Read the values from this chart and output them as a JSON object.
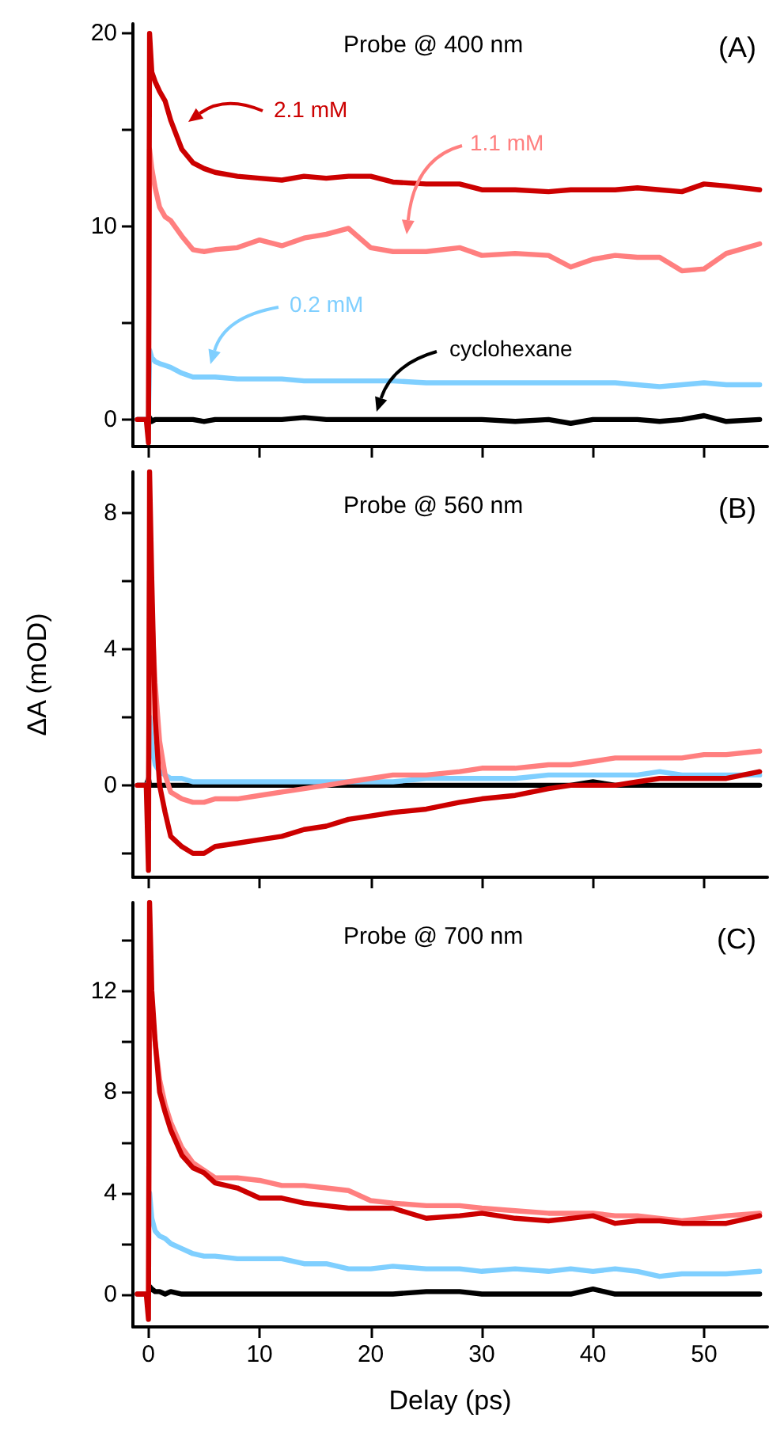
{
  "chart_data": [
    {
      "type": "line",
      "annotations": [
        "Probe @ 400 nm",
        "(A)"
      ],
      "xlim": [
        -1.4,
        55.7
      ],
      "xticks": [
        0,
        10,
        20,
        30,
        40,
        50
      ],
      "ylim": [
        -1.4,
        20.5
      ],
      "yticks": [
        0,
        {
          "value": 5,
          "label": null
        },
        10,
        {
          "value": 15,
          "label": null
        },
        20
      ],
      "tick_labels": "y",
      "x": [
        -1,
        -0.2,
        0,
        0.1,
        0.3,
        0.6,
        1,
        1.5,
        2,
        3,
        4,
        5,
        6,
        8,
        10,
        12,
        14,
        16,
        18,
        20,
        22,
        25,
        28,
        30,
        33,
        36,
        38,
        40,
        42,
        44,
        46,
        48,
        50,
        52,
        55
      ],
      "series": [
        {
          "name": "2.1 mM",
          "color": "#cc0000",
          "values": [
            0,
            0,
            -1.2,
            20,
            18,
            17.5,
            17,
            16.5,
            15.5,
            14,
            13.3,
            13,
            12.8,
            12.6,
            12.5,
            12.4,
            12.6,
            12.5,
            12.6,
            12.6,
            12.3,
            12.2,
            12.2,
            11.9,
            11.9,
            11.8,
            11.9,
            11.9,
            11.9,
            12.0,
            11.9,
            11.8,
            12.2,
            12.1,
            11.9
          ]
        },
        {
          "name": "1.1 mM",
          "color": "#ff7f7f",
          "values": [
            0,
            0,
            0,
            14,
            13,
            12,
            11,
            10.5,
            10.3,
            9.5,
            8.8,
            8.7,
            8.8,
            8.9,
            9.3,
            9.0,
            9.4,
            9.6,
            9.9,
            8.9,
            8.7,
            8.7,
            8.9,
            8.5,
            8.6,
            8.5,
            7.9,
            8.3,
            8.5,
            8.4,
            8.4,
            7.7,
            7.8,
            8.6,
            9.1
          ]
        },
        {
          "name": "0.2 mM",
          "color": "#7fcfff",
          "values": [
            0,
            0,
            0,
            3.6,
            3.2,
            3,
            2.9,
            2.8,
            2.7,
            2.4,
            2.2,
            2.2,
            2.2,
            2.1,
            2.1,
            2.1,
            2.0,
            2.0,
            2.0,
            2.0,
            2.0,
            1.9,
            1.9,
            1.9,
            1.9,
            1.9,
            1.9,
            1.9,
            1.9,
            1.8,
            1.7,
            1.8,
            1.9,
            1.8,
            1.8
          ]
        },
        {
          "name": "cyclohexane",
          "color": "#000000",
          "values": [
            0,
            0,
            0,
            0.1,
            -0.1,
            0,
            0,
            0,
            0,
            0,
            0,
            -0.1,
            0,
            0,
            0,
            0,
            0.1,
            0,
            0,
            0,
            0,
            0,
            0,
            0,
            -0.1,
            0,
            -0.2,
            0,
            0,
            0,
            -0.1,
            0,
            0.2,
            -0.1,
            0
          ]
        }
      ]
    },
    {
      "type": "line",
      "ylabel": "ΔA (mOD)",
      "annotations": [
        "Probe @ 560 nm",
        "(B)"
      ],
      "xlim": [
        -1.4,
        55.7
      ],
      "xticks": [
        0,
        10,
        20,
        30,
        40,
        50
      ],
      "ylim": [
        -2.7,
        9.2
      ],
      "yticks": [
        {
          "value": -2,
          "label": null
        },
        0,
        {
          "value": 2,
          "label": null
        },
        4,
        {
          "value": 6,
          "label": null
        },
        8
      ],
      "tick_labels": "y",
      "x": [
        -1,
        -0.2,
        0,
        0.1,
        0.3,
        0.6,
        1,
        1.5,
        2,
        3,
        4,
        5,
        6,
        8,
        10,
        12,
        14,
        16,
        18,
        20,
        22,
        25,
        28,
        30,
        33,
        36,
        38,
        40,
        42,
        44,
        46,
        48,
        50,
        52,
        55
      ],
      "series": [
        {
          "color": "#cc0000",
          "values": [
            0,
            0,
            -2.5,
            9.2,
            6,
            2,
            0,
            -0.8,
            -1.5,
            -1.8,
            -2.0,
            -2.0,
            -1.8,
            -1.7,
            -1.6,
            -1.5,
            -1.3,
            -1.2,
            -1.0,
            -0.9,
            -0.8,
            -0.7,
            -0.5,
            -0.4,
            -0.3,
            -0.1,
            0,
            0,
            0,
            0.1,
            0.2,
            0.2,
            0.2,
            0.2,
            0.4
          ]
        },
        {
          "color": "#ff7f7f",
          "values": [
            0,
            0,
            0,
            6,
            5,
            3,
            1.3,
            0.3,
            -0.2,
            -0.4,
            -0.5,
            -0.5,
            -0.4,
            -0.4,
            -0.3,
            -0.2,
            -0.1,
            0,
            0.1,
            0.2,
            0.3,
            0.3,
            0.4,
            0.5,
            0.5,
            0.6,
            0.6,
            0.7,
            0.8,
            0.8,
            0.8,
            0.8,
            0.9,
            0.9,
            1.0
          ]
        },
        {
          "color": "#7fcfff",
          "values": [
            0,
            0,
            0,
            2,
            1.2,
            0.6,
            0.4,
            0.3,
            0.2,
            0.2,
            0.1,
            0.1,
            0.1,
            0.1,
            0.1,
            0.1,
            0.1,
            0.1,
            0.1,
            0.1,
            0.1,
            0.2,
            0.2,
            0.2,
            0.2,
            0.3,
            0.3,
            0.3,
            0.3,
            0.3,
            0.4,
            0.3,
            0.3,
            0.3,
            0.3
          ]
        },
        {
          "color": "#000000",
          "values": [
            0,
            0,
            0.2,
            0,
            0,
            0,
            0,
            0,
            0,
            0,
            0,
            0,
            0,
            0,
            0,
            0,
            0,
            0,
            0,
            0,
            0,
            0,
            0,
            0,
            0,
            0,
            0,
            0.1,
            0,
            0,
            0,
            0,
            0,
            0,
            0
          ]
        }
      ]
    },
    {
      "type": "line",
      "xlabel": "Delay (ps)",
      "annotations": [
        "Probe @ 700 nm",
        "(C)"
      ],
      "xlim": [
        -1.4,
        55.7
      ],
      "xticks": [
        0,
        10,
        20,
        30,
        40,
        50
      ],
      "ylim": [
        -1.3,
        15.5
      ],
      "yticks": [
        0,
        {
          "value": 2,
          "label": null
        },
        4,
        {
          "value": 6,
          "label": null
        },
        8,
        {
          "value": 10,
          "label": null
        },
        12,
        {
          "value": 14,
          "label": null
        }
      ],
      "x": [
        -1,
        -0.2,
        0,
        0.1,
        0.3,
        0.6,
        1,
        1.5,
        2,
        3,
        4,
        5,
        6,
        8,
        10,
        12,
        14,
        16,
        18,
        20,
        22,
        25,
        28,
        30,
        33,
        36,
        38,
        40,
        42,
        44,
        46,
        48,
        50,
        52,
        55
      ],
      "series": [
        {
          "color": "#cc0000",
          "values": [
            0,
            0,
            -1,
            15.5,
            12,
            10,
            8,
            7.2,
            6.5,
            5.5,
            5.0,
            4.8,
            4.4,
            4.2,
            3.8,
            3.8,
            3.6,
            3.5,
            3.4,
            3.4,
            3.4,
            3.0,
            3.1,
            3.2,
            3.0,
            2.9,
            3.0,
            3.1,
            2.8,
            2.9,
            2.9,
            2.8,
            2.8,
            2.8,
            3.1
          ]
        },
        {
          "color": "#ff7f7f",
          "values": [
            0,
            0,
            0,
            14,
            11,
            10,
            8.5,
            7.5,
            6.8,
            5.8,
            5.2,
            4.9,
            4.6,
            4.6,
            4.5,
            4.3,
            4.3,
            4.2,
            4.1,
            3.7,
            3.6,
            3.5,
            3.5,
            3.4,
            3.3,
            3.2,
            3.2,
            3.2,
            3.1,
            3.1,
            3.0,
            2.9,
            3.0,
            3.1,
            3.2
          ]
        },
        {
          "color": "#7fcfff",
          "values": [
            0,
            0,
            null,
            4,
            3,
            2.5,
            2.3,
            2.2,
            2.0,
            1.8,
            1.6,
            1.5,
            1.5,
            1.4,
            1.4,
            1.4,
            1.2,
            1.2,
            1.0,
            1.0,
            1.1,
            1.0,
            1.0,
            0.9,
            1.0,
            0.9,
            1.0,
            0.9,
            1.0,
            0.9,
            0.7,
            0.8,
            0.8,
            0.8,
            0.9
          ]
        },
        {
          "color": "#000000",
          "values": [
            0,
            0,
            0,
            0.3,
            0.2,
            0.1,
            0.1,
            0,
            0.1,
            0,
            0,
            0,
            0,
            0,
            0,
            0,
            0,
            0,
            0,
            0,
            0,
            0.1,
            0.1,
            0,
            0,
            0,
            0,
            0.2,
            0,
            0,
            0,
            0,
            0,
            0,
            0
          ]
        }
      ]
    }
  ]
}
